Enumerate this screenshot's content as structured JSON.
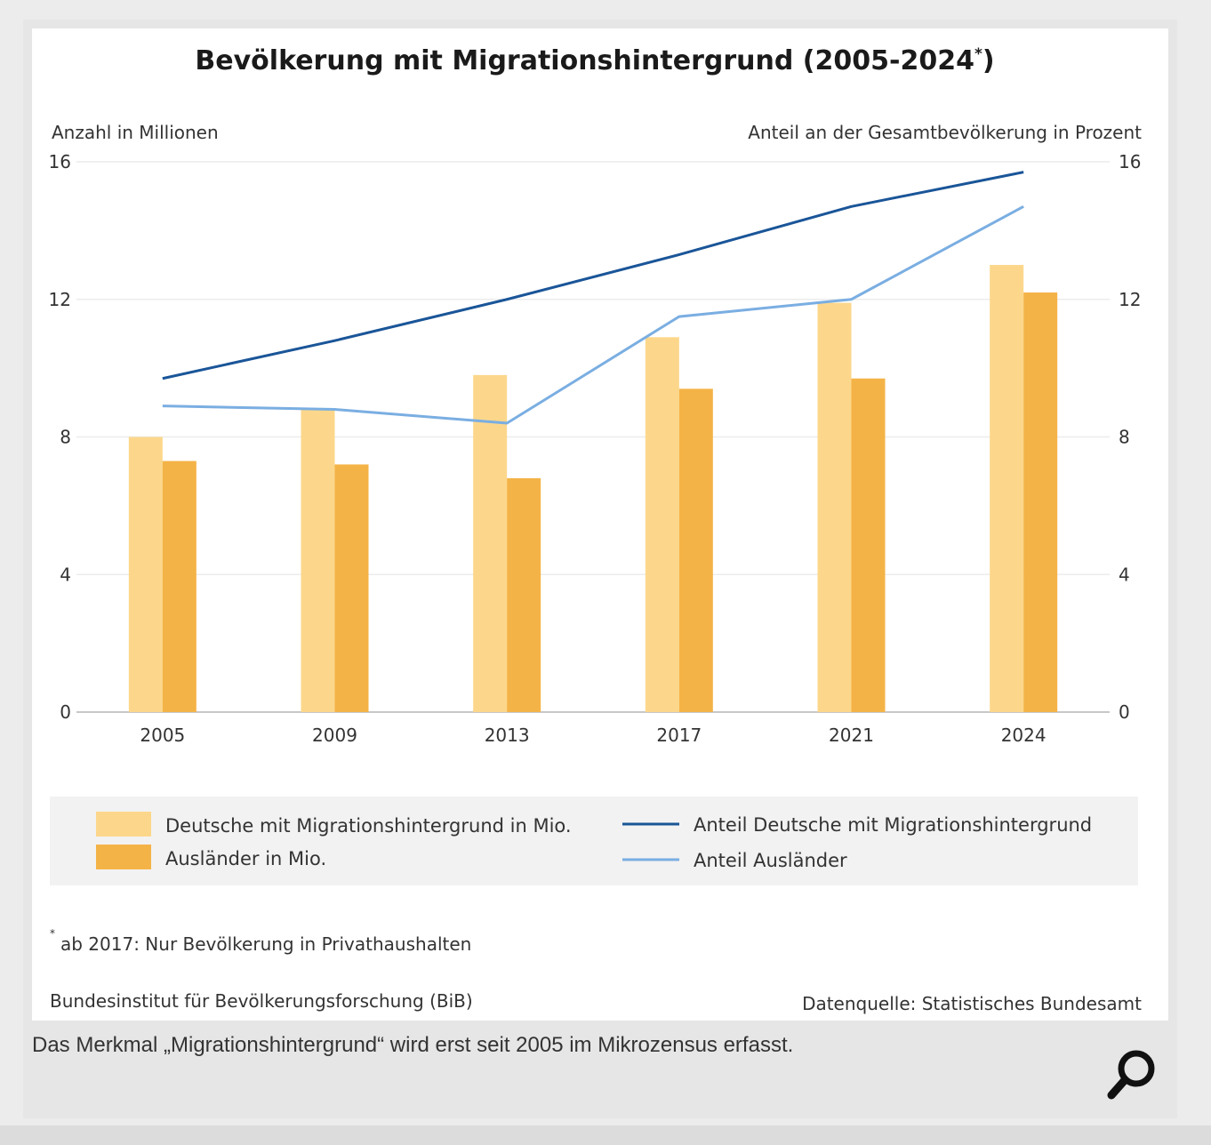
{
  "chart_data": {
    "type": "bar",
    "title": "Bevölkerung mit Migrationshintergrund (2005-2024*)",
    "title_main": "Bevölkerung mit Migrationshintergrund (2005-2024",
    "title_sup": "*",
    "title_end": ")",
    "ylabel_left": "Anzahl in Millionen",
    "ylabel_right": "Anteil an der Gesamtbevölkerung in Prozent",
    "ylim": [
      0,
      16
    ],
    "yticks": [
      "0",
      "4",
      "8",
      "12",
      "16"
    ],
    "categories": [
      "2005",
      "2009",
      "2013",
      "2017",
      "2021",
      "2024"
    ],
    "bar_series": [
      {
        "name": "Deutsche mit Migrationshintergrund in Mio.",
        "values": [
          8.0,
          8.8,
          9.8,
          10.9,
          11.9,
          13.0
        ],
        "color": "#fcd78b"
      },
      {
        "name": "Ausländer in Mio.",
        "values": [
          7.3,
          7.2,
          6.8,
          9.4,
          9.7,
          12.2
        ],
        "color": "#f4b347"
      }
    ],
    "line_series": [
      {
        "name": "Anteil Deutsche mit Migrationshintergrund",
        "values": [
          9.7,
          10.8,
          12.0,
          13.3,
          14.7,
          15.7
        ],
        "color": "#1a5598"
      },
      {
        "name": "Anteil Ausländer",
        "values": [
          8.9,
          8.8,
          8.4,
          11.5,
          12.0,
          14.7
        ],
        "color": "#7aaee2"
      }
    ],
    "footnote_marker": "*",
    "footnote_text": "ab 2017: Nur Bevölkerung in Privathaushalten",
    "publisher": "Bundesinstitut für Bevölkerungsforschung (BiB)",
    "source": "Datenquelle: Statistisches Bundesamt"
  },
  "caption": "Das Merkmal „Migrationshintergrund“ wird erst seit 2005 im Mikrozensus erfasst.",
  "zoom_icon": "magnifier-icon"
}
